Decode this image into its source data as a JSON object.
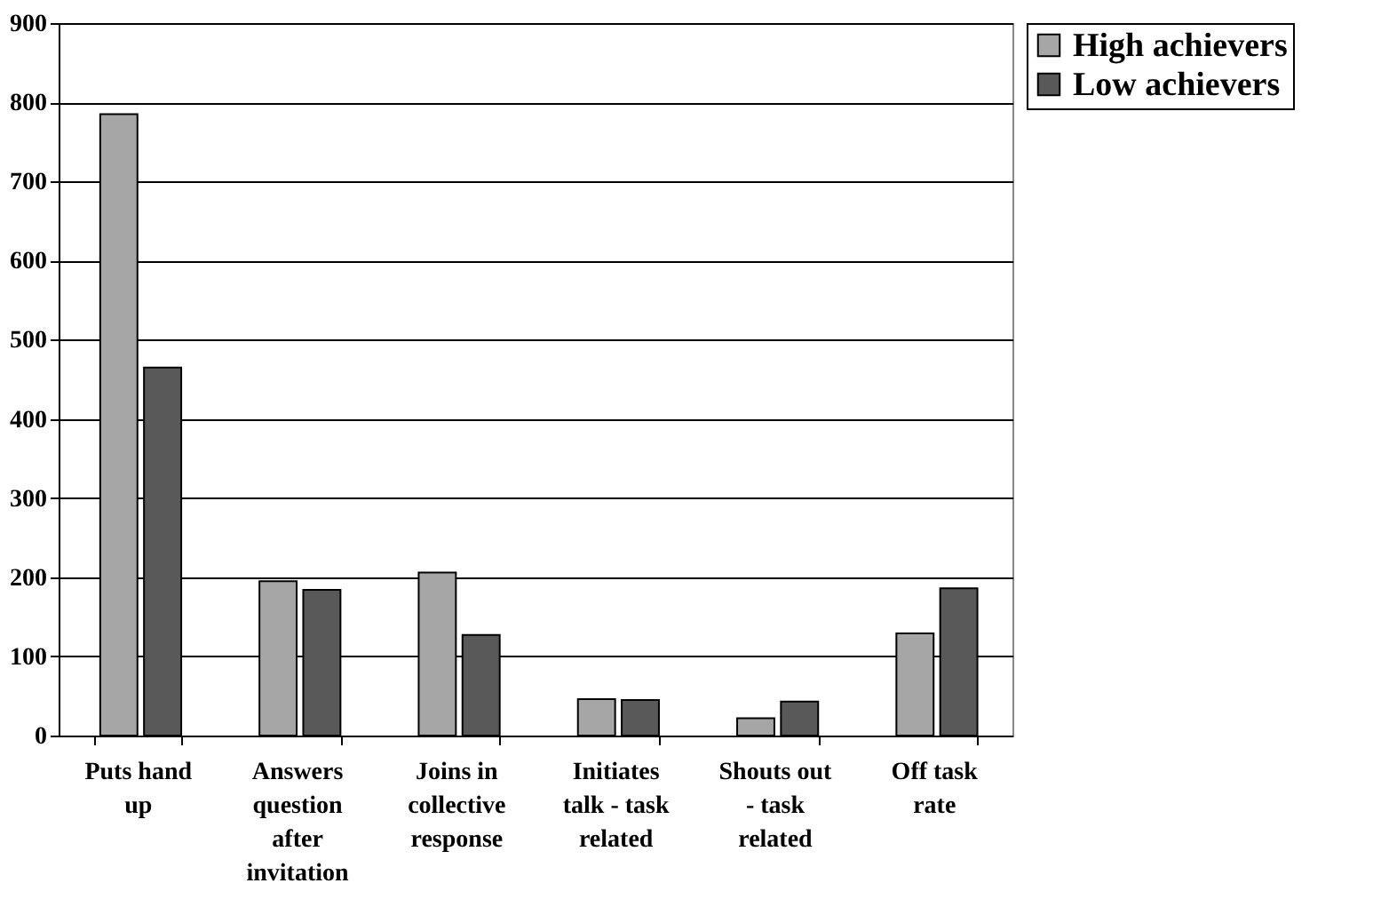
{
  "chart_data": {
    "type": "bar",
    "categories": [
      "Puts hand up",
      "Answers question after invitation",
      "Joins in collective response",
      "Initiates talk - task related",
      "Shouts out - task related",
      "Off task rate"
    ],
    "series": [
      {
        "name": "High achievers",
        "color": "#a6a6a6",
        "values": [
          785,
          195,
          206,
          46,
          22,
          129
        ]
      },
      {
        "name": "Low achievers",
        "color": "#595959",
        "values": [
          465,
          184,
          127,
          45,
          43,
          186
        ]
      }
    ],
    "ylim": [
      0,
      900
    ],
    "yticks": [
      0,
      100,
      200,
      300,
      400,
      500,
      600,
      700,
      800,
      900
    ],
    "grid": "y",
    "legend": "right"
  }
}
